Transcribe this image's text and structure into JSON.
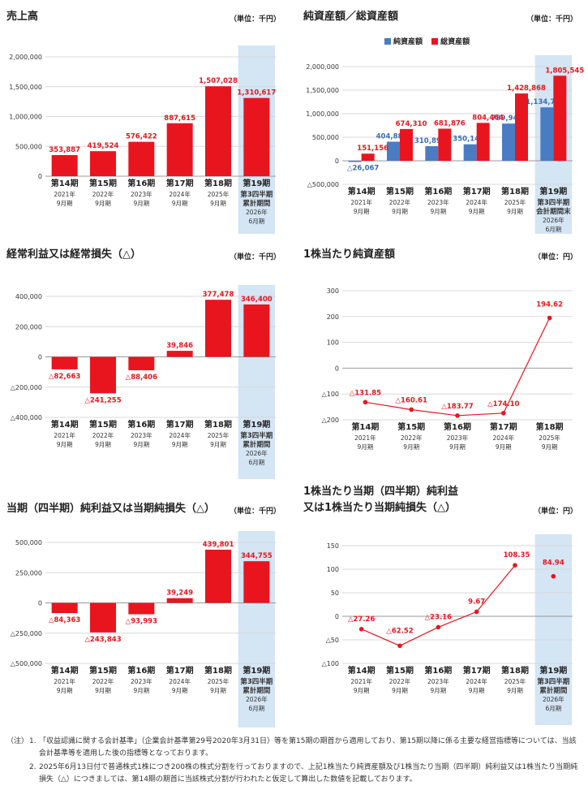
{
  "colors": {
    "red": "#e8151f",
    "blue": "#4a7cc4",
    "highlight": "#d4e5f4",
    "value_red": "#e8151f",
    "value_blue": "#3b6db3"
  },
  "panels": [
    {
      "id": "sales",
      "title": "売上高",
      "unit": "（単位：千円）",
      "chart_data": {
        "type": "bar",
        "categories": [
          "第14期",
          "第15期",
          "第16期",
          "第17期",
          "第18期",
          "第19期"
        ],
        "category_sublabels": [
          [
            "2021年",
            "9月期"
          ],
          [
            "2022年",
            "9月期"
          ],
          [
            "2023年",
            "9月期"
          ],
          [
            "2024年",
            "9月期"
          ],
          [
            "2025年",
            "9月期"
          ],
          [
            "第3四半期",
            "累計期間",
            "2026年",
            "6月期"
          ]
        ],
        "series": [
          {
            "values": [
              353887,
              419524,
              576422,
              887615,
              1507028,
              1310617
            ]
          }
        ],
        "value_labels": [
          "353,887",
          "419,524",
          "576,422",
          "887,615",
          "1,507,028",
          "1,310,617"
        ],
        "yticks": [
          0,
          500000,
          1000000,
          1500000,
          2000000
        ],
        "ytick_labels": [
          "0",
          "500,000",
          "1,000,000",
          "1,500,000",
          "2,000,000"
        ],
        "ylim": [
          0,
          2000000
        ],
        "highlight_last": true
      }
    },
    {
      "id": "assets",
      "title": "純資産額／総資産額",
      "unit": "（単位：千円）",
      "chart_data": {
        "type": "bar",
        "categories": [
          "第14期",
          "第15期",
          "第16期",
          "第17期",
          "第18期",
          "第19期"
        ],
        "category_sublabels": [
          [
            "2021年",
            "9月期"
          ],
          [
            "2022年",
            "9月期"
          ],
          [
            "2023年",
            "9月期"
          ],
          [
            "2024年",
            "9月期"
          ],
          [
            "2025年",
            "9月期"
          ],
          [
            "第3四半期",
            "会計期間末",
            "2026年",
            "6月期"
          ]
        ],
        "series": [
          {
            "name": "純資産額",
            "values": [
              -26067,
              404889,
              310895,
              350145,
              789946,
              1134702
            ],
            "labels": [
              "△26,067",
              "404,889",
              "310,895",
              "350,145",
              "789,946",
              "1,134,702"
            ]
          },
          {
            "name": "総資産額",
            "values": [
              151156,
              674310,
              681876,
              804464,
              1428868,
              1805545
            ],
            "labels": [
              "151,156",
              "674,310",
              "681,876",
              "804,464",
              "1,428,868",
              "1,805,545"
            ]
          }
        ],
        "yticks": [
          -500000,
          0,
          500000,
          1000000,
          1500000,
          2000000
        ],
        "ytick_labels": [
          "△500,000",
          "0",
          "500,000",
          "1,000,000",
          "1,500,000",
          "2,000,000"
        ],
        "ylim": [
          -500000,
          2000000
        ],
        "legend": "top-center",
        "highlight_last": true
      }
    },
    {
      "id": "ordinary",
      "title": "経常利益又は経常損失（△）",
      "unit": "（単位：千円）",
      "chart_data": {
        "type": "bar",
        "categories": [
          "第14期",
          "第15期",
          "第16期",
          "第17期",
          "第18期",
          "第19期"
        ],
        "category_sublabels": [
          [
            "2021年",
            "9月期"
          ],
          [
            "2022年",
            "9月期"
          ],
          [
            "2023年",
            "9月期"
          ],
          [
            "2024年",
            "9月期"
          ],
          [
            "2025年",
            "9月期"
          ],
          [
            "第3四半期",
            "累計期間",
            "2026年",
            "6月期"
          ]
        ],
        "series": [
          {
            "values": [
              -82663,
              -241255,
              -88406,
              39846,
              377478,
              346400
            ]
          }
        ],
        "value_labels": [
          "△82,663",
          "△241,255",
          "△88,406",
          "39,846",
          "377,478",
          "346,400"
        ],
        "yticks": [
          -400000,
          -200000,
          0,
          200000,
          400000
        ],
        "ytick_labels": [
          "△400,000",
          "△200,000",
          "0",
          "200,000",
          "400,000"
        ],
        "ylim": [
          -400000,
          400000
        ],
        "highlight_last": true
      }
    },
    {
      "id": "bps",
      "title": "1株当たり純資産額",
      "unit": "（単位：円）",
      "chart_data": {
        "type": "line",
        "categories": [
          "第14期",
          "第15期",
          "第16期",
          "第17期",
          "第18期"
        ],
        "category_sublabels": [
          [
            "2021年",
            "9月期"
          ],
          [
            "2022年",
            "9月期"
          ],
          [
            "2023年",
            "9月期"
          ],
          [
            "2024年",
            "9月期"
          ],
          [
            "2025年",
            "9月期"
          ]
        ],
        "series": [
          {
            "values": [
              -131.85,
              -160.61,
              -183.77,
              -174.1,
              194.62
            ]
          }
        ],
        "value_labels": [
          "△131.85",
          "△160.61",
          "△183.77",
          "△174.10",
          "194.62"
        ],
        "yticks": [
          -200,
          -100,
          0,
          100,
          200,
          300
        ],
        "ytick_labels": [
          "△200",
          "△100",
          "0",
          "100",
          "200",
          "300"
        ],
        "ylim": [
          -200,
          300
        ],
        "highlight_last": false
      }
    },
    {
      "id": "net",
      "title": "当期（四半期）純利益又は当期純損失（△）",
      "unit": "（単位：千円）",
      "chart_data": {
        "type": "bar",
        "categories": [
          "第14期",
          "第15期",
          "第16期",
          "第17期",
          "第18期",
          "第19期"
        ],
        "category_sublabels": [
          [
            "2021年",
            "9月期"
          ],
          [
            "2022年",
            "9月期"
          ],
          [
            "2023年",
            "9月期"
          ],
          [
            "2024年",
            "9月期"
          ],
          [
            "2025年",
            "9月期"
          ],
          [
            "第3四半期",
            "累計期間",
            "2026年",
            "6月期"
          ]
        ],
        "series": [
          {
            "values": [
              -84363,
              -243843,
              -93993,
              39249,
              439801,
              344755
            ]
          }
        ],
        "value_labels": [
          "△84,363",
          "△243,843",
          "△93,993",
          "39,249",
          "439,801",
          "344,755"
        ],
        "yticks": [
          -500000,
          -250000,
          0,
          250000,
          500000
        ],
        "ytick_labels": [
          "△500,000",
          "△250,000",
          "0",
          "250,000",
          "500,000"
        ],
        "ylim": [
          -500000,
          500000
        ],
        "highlight_last": true
      }
    },
    {
      "id": "eps",
      "title": "1株当たり当期（四半期）純利益",
      "title2": "又は1株当たり当期純損失（△）",
      "unit": "（単位：円）",
      "chart_data": {
        "type": "line",
        "categories": [
          "第14期",
          "第15期",
          "第16期",
          "第17期",
          "第18期",
          "第19期"
        ],
        "category_sublabels": [
          [
            "2021年",
            "9月期"
          ],
          [
            "2022年",
            "9月期"
          ],
          [
            "2023年",
            "9月期"
          ],
          [
            "2024年",
            "9月期"
          ],
          [
            "2025年",
            "9月期"
          ],
          [
            "第3四半期",
            "累計期間",
            "2026年",
            "6月期"
          ]
        ],
        "series": [
          {
            "values": [
              -27.26,
              -62.52,
              -23.16,
              9.67,
              108.35,
              84.94
            ]
          }
        ],
        "value_labels": [
          "△27.26",
          "△62.52",
          "△23.16",
          "9.67",
          "108.35",
          "84.94"
        ],
        "yticks": [
          -100,
          -50,
          0,
          50,
          100,
          150
        ],
        "ytick_labels": [
          "△100",
          "△50",
          "0",
          "50",
          "100",
          "150"
        ],
        "ylim": [
          -100,
          150
        ],
        "highlight_last": true,
        "connect_last": false
      }
    }
  ],
  "notes": {
    "head": "（注）",
    "items": [
      {
        "num": "1.",
        "text": "「収益認識に関する会計基準」（企業会計基準第29号2020年3月31日）等を第15期の期首から適用しており、第15期以降に係る主要な経営指標等については、当該会計基準等を適用した後の指標等となっております。"
      },
      {
        "num": "2.",
        "text": "2025年6月13日付で普通株式1株につき200株の株式分割を行っておりますので、上記1株当たり純資産額及び1株当たり当期（四半期）純利益又は1株当たり当期純損失（△）につきましては、第14期の期首に当該株式分割が行われたと仮定して算出した数値を記載しております。"
      }
    ]
  }
}
